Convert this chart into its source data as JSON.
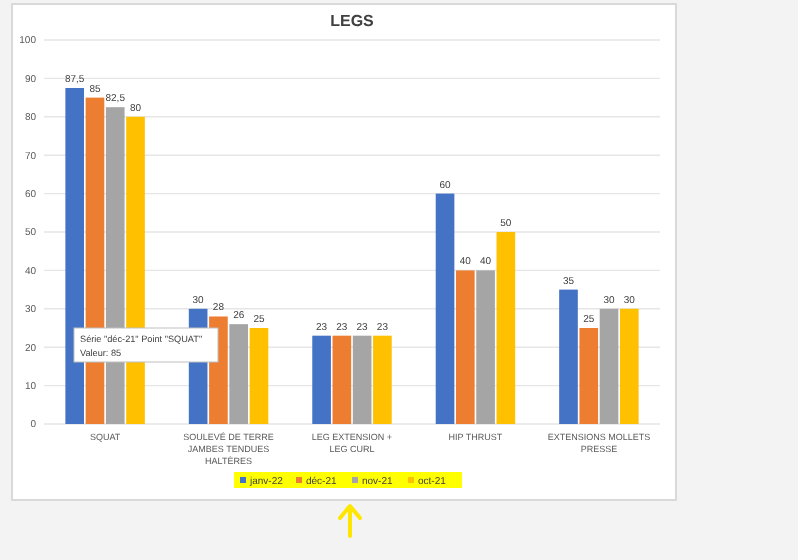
{
  "chart_data": {
    "type": "bar",
    "title": "LEGS",
    "categories": [
      "SQUAT",
      "SOULEVÉ DE TERRE JAMBES TENDUES HALTÈRES",
      "LEG EXTENSION + LEG CURL",
      "HIP THRUST",
      "EXTENSIONS MOLLETS PRESSE"
    ],
    "series": [
      {
        "name": "janv-22",
        "color": "#4472c4",
        "values": [
          87.5,
          30,
          23,
          60,
          35
        ],
        "value_labels": [
          "87,5",
          "30",
          "23",
          "60",
          "35"
        ]
      },
      {
        "name": "déc-21",
        "color": "#ed7d31",
        "values": [
          85,
          28,
          23,
          40,
          25
        ],
        "value_labels": [
          "85",
          "28",
          "23",
          "40",
          "25"
        ]
      },
      {
        "name": "nov-21",
        "color": "#a5a5a5",
        "values": [
          82.5,
          26,
          23,
          40,
          30
        ],
        "value_labels": [
          "82,5",
          "26",
          "23",
          "40",
          "30"
        ]
      },
      {
        "name": "oct-21",
        "color": "#ffc000",
        "values": [
          80,
          25,
          23,
          50,
          30
        ],
        "value_labels": [
          "80",
          "25",
          "23",
          "50",
          "30"
        ]
      }
    ],
    "ylim": [
      0,
      100
    ],
    "yticks": [
      0,
      10,
      20,
      30,
      40,
      50,
      60,
      70,
      80,
      90,
      100
    ],
    "grid": "y",
    "legend": "bottom",
    "annotations": [
      "Série \"déc-21\" Point \"SQUAT\"",
      "Valeur: 85"
    ]
  }
}
